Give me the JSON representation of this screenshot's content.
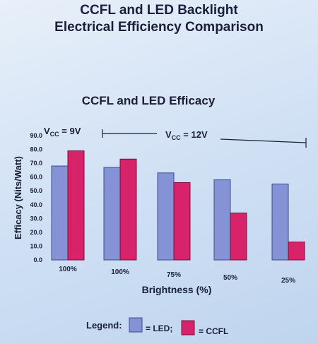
{
  "slide": {
    "title_line1": "CCFL and LED Backlight",
    "title_line2": "Electrical Efficiency Comparison"
  },
  "annotations": {
    "vcc9_label": "V",
    "vcc9_sub": "CC",
    "vcc9_value": " = 9V",
    "vcc12_label": "V",
    "vcc12_sub": "CC",
    "vcc12_value": " = 12V"
  },
  "legend": {
    "label": "Legend:",
    "led_text": "= LED;",
    "ccfl_text": "= CCFL"
  },
  "colors": {
    "led": "#8592d6",
    "ccfl": "#d6236a",
    "text": "#1a1f3a"
  },
  "chart_data": {
    "type": "bar",
    "title": "CCFL and LED Efficacy",
    "xlabel": "Brightness (%)",
    "ylabel": "Efficacy (Nits/Watt)",
    "ylim": [
      0,
      90
    ],
    "yticks": [
      "0.0",
      "10.0",
      "20.0",
      "30.0",
      "40.0",
      "50.0",
      "60.0",
      "70.0",
      "80.0",
      "90.0"
    ],
    "categories": [
      "100%",
      "100%",
      "75%",
      "50%",
      "25%"
    ],
    "series": [
      {
        "name": "LED",
        "color": "#8592d6",
        "values": [
          68,
          67,
          63,
          58,
          55
        ]
      },
      {
        "name": "CCFL",
        "color": "#d6236a",
        "values": [
          79,
          73,
          56,
          34,
          13
        ]
      }
    ],
    "grid": false,
    "legend_position": "bottom"
  }
}
